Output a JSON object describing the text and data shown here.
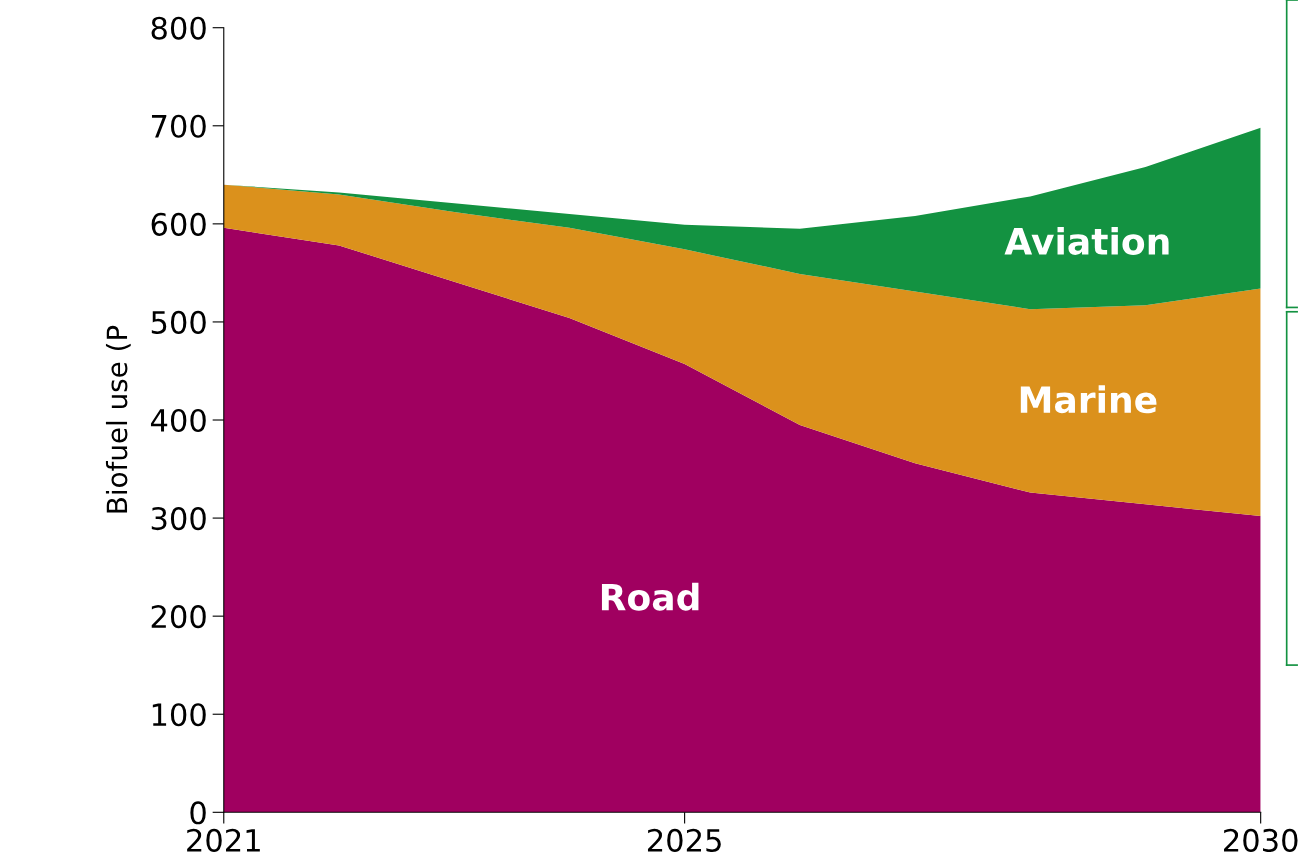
{
  "chart_data": {
    "type": "area",
    "stacked": true,
    "ylabel": "Biofuel use (P",
    "x": [
      2021,
      2022,
      2023,
      2024,
      2025,
      2026,
      2027,
      2028,
      2029,
      2030
    ],
    "series": [
      {
        "name": "Road",
        "color": "#a00060",
        "values": [
          596,
          578,
          541,
          504,
          457,
          395,
          356,
          326,
          314,
          302
        ]
      },
      {
        "name": "Marine",
        "color": "#db911c",
        "values": [
          44,
          52,
          71,
          92,
          117,
          154,
          175,
          187,
          203,
          232
        ]
      },
      {
        "name": "Aviation",
        "color": "#139241",
        "values": [
          0,
          2,
          9,
          14,
          25,
          46,
          77,
          115,
          141,
          164
        ]
      }
    ],
    "xlim": [
      2021,
      2030
    ],
    "xticks": [
      2021,
      2025,
      2030
    ],
    "ylim": [
      0,
      800
    ],
    "yticks": [
      0,
      100,
      200,
      300,
      400,
      500,
      600,
      700,
      800
    ],
    "grid": false,
    "legend": false
  }
}
